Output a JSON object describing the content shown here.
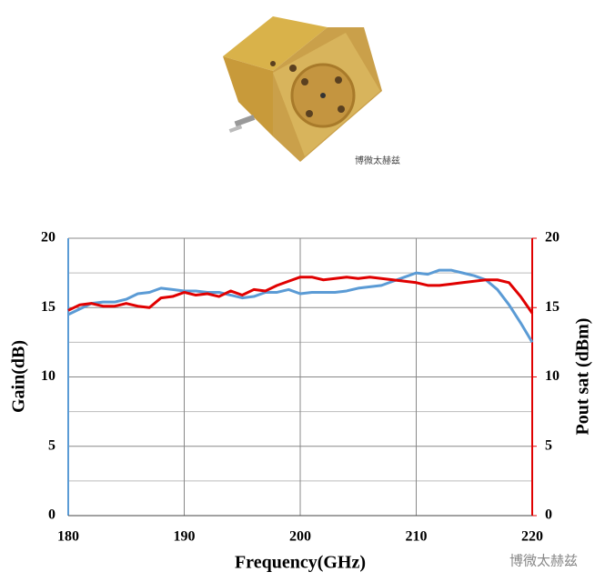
{
  "chart_data": {
    "type": "line",
    "watermarks": [
      "博微太赫兹",
      "博微太赫兹"
    ],
    "xlabel": "Frequency(GHz)",
    "ylabel": "Gain(dB)",
    "y2label": "Pout sat (dBm)",
    "x": [
      180,
      181,
      182,
      183,
      184,
      185,
      186,
      187,
      188,
      189,
      190,
      191,
      192,
      193,
      194,
      195,
      196,
      197,
      198,
      199,
      200,
      201,
      202,
      203,
      204,
      205,
      206,
      207,
      208,
      209,
      210,
      211,
      212,
      213,
      214,
      215,
      216,
      217,
      218,
      219,
      220
    ],
    "series": [
      {
        "color": "#5b9bd5",
        "values": [
          14.5,
          14.9,
          15.3,
          15.4,
          15.4,
          15.6,
          16.0,
          16.1,
          16.4,
          16.3,
          16.2,
          16.2,
          16.1,
          16.1,
          15.9,
          15.7,
          15.8,
          16.1,
          16.1,
          16.3,
          16.0,
          16.1,
          16.1,
          16.1,
          16.2,
          16.4,
          16.5,
          16.6,
          16.9,
          17.2,
          17.5,
          17.4,
          17.7,
          17.7,
          17.5,
          17.3,
          17.0,
          16.3,
          15.2,
          13.9,
          12.5
        ]
      },
      {
        "color": "#e00000",
        "axis": "y2",
        "values": [
          14.8,
          15.2,
          15.3,
          15.1,
          15.1,
          15.3,
          15.1,
          15.0,
          15.7,
          15.8,
          16.1,
          15.9,
          16.0,
          15.8,
          16.2,
          15.9,
          16.3,
          16.2,
          16.6,
          16.9,
          17.2,
          17.2,
          17.0,
          17.1,
          17.2,
          17.1,
          17.2,
          17.1,
          17.0,
          16.9,
          16.8,
          16.6,
          16.6,
          16.7,
          16.8,
          16.9,
          17.0,
          17.0,
          16.8,
          15.8,
          14.6
        ]
      }
    ],
    "xlim": [
      180,
      220
    ],
    "xticks": [
      180,
      190,
      200,
      210,
      220
    ],
    "ylim": [
      0,
      20
    ],
    "yticks": [
      0,
      5,
      10,
      15,
      20
    ],
    "y2lim": [
      0,
      20
    ],
    "y2ticks": [
      0,
      5,
      10,
      15,
      20
    ],
    "minor_yticks": [
      2.5,
      7.5,
      12.5,
      17.5
    ],
    "grid": true
  }
}
